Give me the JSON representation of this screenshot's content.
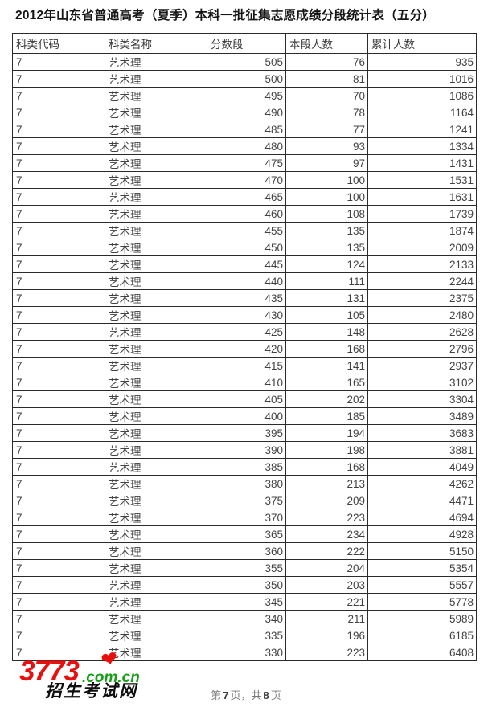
{
  "title": "2012年山东省普通高考（夏季）本科一批征集志愿成绩分段统计表（五分）",
  "table": {
    "headers": [
      "科类代码",
      "科类名称",
      "分数段",
      "本段人数",
      "累计人数"
    ],
    "row_keys": [
      "category-code",
      "category-name",
      "score-segment",
      "segment-count",
      "cumulative-count"
    ],
    "rows": [
      [
        "7",
        "艺术理",
        "505",
        "76",
        "935"
      ],
      [
        "7",
        "艺术理",
        "500",
        "81",
        "1016"
      ],
      [
        "7",
        "艺术理",
        "495",
        "70",
        "1086"
      ],
      [
        "7",
        "艺术理",
        "490",
        "78",
        "1164"
      ],
      [
        "7",
        "艺术理",
        "485",
        "77",
        "1241"
      ],
      [
        "7",
        "艺术理",
        "480",
        "93",
        "1334"
      ],
      [
        "7",
        "艺术理",
        "475",
        "97",
        "1431"
      ],
      [
        "7",
        "艺术理",
        "470",
        "100",
        "1531"
      ],
      [
        "7",
        "艺术理",
        "465",
        "100",
        "1631"
      ],
      [
        "7",
        "艺术理",
        "460",
        "108",
        "1739"
      ],
      [
        "7",
        "艺术理",
        "455",
        "135",
        "1874"
      ],
      [
        "7",
        "艺术理",
        "450",
        "135",
        "2009"
      ],
      [
        "7",
        "艺术理",
        "445",
        "124",
        "2133"
      ],
      [
        "7",
        "艺术理",
        "440",
        "111",
        "2244"
      ],
      [
        "7",
        "艺术理",
        "435",
        "131",
        "2375"
      ],
      [
        "7",
        "艺术理",
        "430",
        "105",
        "2480"
      ],
      [
        "7",
        "艺术理",
        "425",
        "148",
        "2628"
      ],
      [
        "7",
        "艺术理",
        "420",
        "168",
        "2796"
      ],
      [
        "7",
        "艺术理",
        "415",
        "141",
        "2937"
      ],
      [
        "7",
        "艺术理",
        "410",
        "165",
        "3102"
      ],
      [
        "7",
        "艺术理",
        "405",
        "202",
        "3304"
      ],
      [
        "7",
        "艺术理",
        "400",
        "185",
        "3489"
      ],
      [
        "7",
        "艺术理",
        "395",
        "194",
        "3683"
      ],
      [
        "7",
        "艺术理",
        "390",
        "198",
        "3881"
      ],
      [
        "7",
        "艺术理",
        "385",
        "168",
        "4049"
      ],
      [
        "7",
        "艺术理",
        "380",
        "213",
        "4262"
      ],
      [
        "7",
        "艺术理",
        "375",
        "209",
        "4471"
      ],
      [
        "7",
        "艺术理",
        "370",
        "223",
        "4694"
      ],
      [
        "7",
        "艺术理",
        "365",
        "234",
        "4928"
      ],
      [
        "7",
        "艺术理",
        "360",
        "222",
        "5150"
      ],
      [
        "7",
        "艺术理",
        "355",
        "204",
        "5354"
      ],
      [
        "7",
        "艺术理",
        "350",
        "203",
        "5557"
      ],
      [
        "7",
        "艺术理",
        "345",
        "221",
        "5778"
      ],
      [
        "7",
        "艺术理",
        "340",
        "211",
        "5989"
      ],
      [
        "7",
        "艺术理",
        "335",
        "196",
        "6185"
      ],
      [
        "7",
        "艺术理",
        "330",
        "223",
        "6408"
      ]
    ]
  },
  "logo": {
    "number": "3773",
    "domain": ".com.cn",
    "site_name": "招生考试网",
    "heart_glyph": "❤"
  },
  "footer": {
    "prefix": "第",
    "current_page": "7",
    "middle": "页，共",
    "total_pages": "8",
    "suffix": "页"
  },
  "colors": {
    "brand-red": "#e8100e",
    "brand-green": "#17a017",
    "cell-text": "#424242",
    "border-color": "#2b2b2b"
  }
}
